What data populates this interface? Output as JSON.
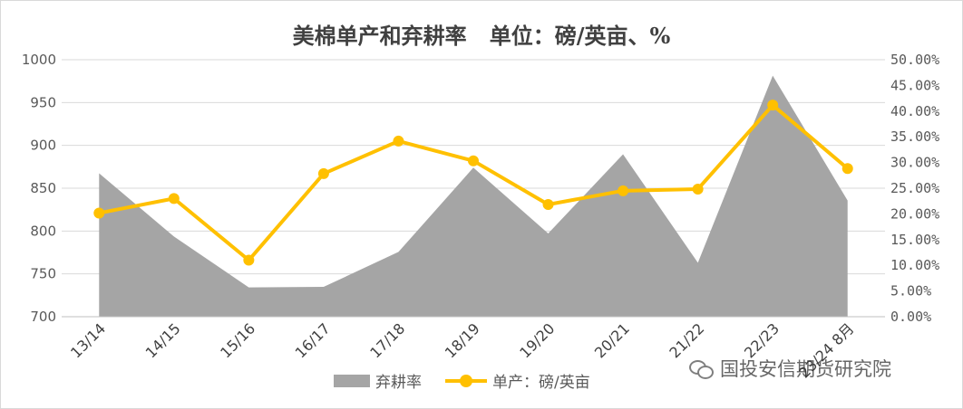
{
  "watermark": {
    "text": "国投安信期货研究院",
    "icon": "wechat-icon"
  },
  "colors": {
    "area": "#a5a5a5",
    "line": "#ffc000",
    "grid": "#d9d9d9",
    "text": "#595959"
  },
  "chart_data": {
    "type": "area+line",
    "title": "美棉单产和弃耕率   单位：磅/英亩、%",
    "categories": [
      "13/14",
      "14/15",
      "15/16",
      "16/17",
      "17/18",
      "18/19",
      "19/20",
      "20/21",
      "21/22",
      "22/23",
      "23/24 8月"
    ],
    "y_left": {
      "min": 700,
      "max": 1000,
      "step": 50,
      "ticks": [
        "700",
        "750",
        "800",
        "850",
        "900",
        "950",
        "1000"
      ]
    },
    "y_right": {
      "min": 0,
      "max": 50,
      "step": 5,
      "ticks": [
        "0.00%",
        "5.00%",
        "10.00%",
        "15.00%",
        "20.00%",
        "25.00%",
        "30.00%",
        "35.00%",
        "40.00%",
        "45.00%",
        "50.00%"
      ]
    },
    "grid": true,
    "legend_position": "bottom",
    "series": [
      {
        "name": "弃耕率",
        "type": "area",
        "axis": "right",
        "values": [
          27.9,
          15.6,
          5.7,
          5.8,
          12.6,
          29.0,
          16.2,
          31.6,
          10.5,
          46.9,
          22.6
        ]
      },
      {
        "name": "单产：磅/英亩",
        "type": "line",
        "axis": "left",
        "values": [
          821,
          838,
          766,
          867,
          905,
          882,
          831,
          847,
          849,
          947,
          873
        ]
      }
    ]
  }
}
